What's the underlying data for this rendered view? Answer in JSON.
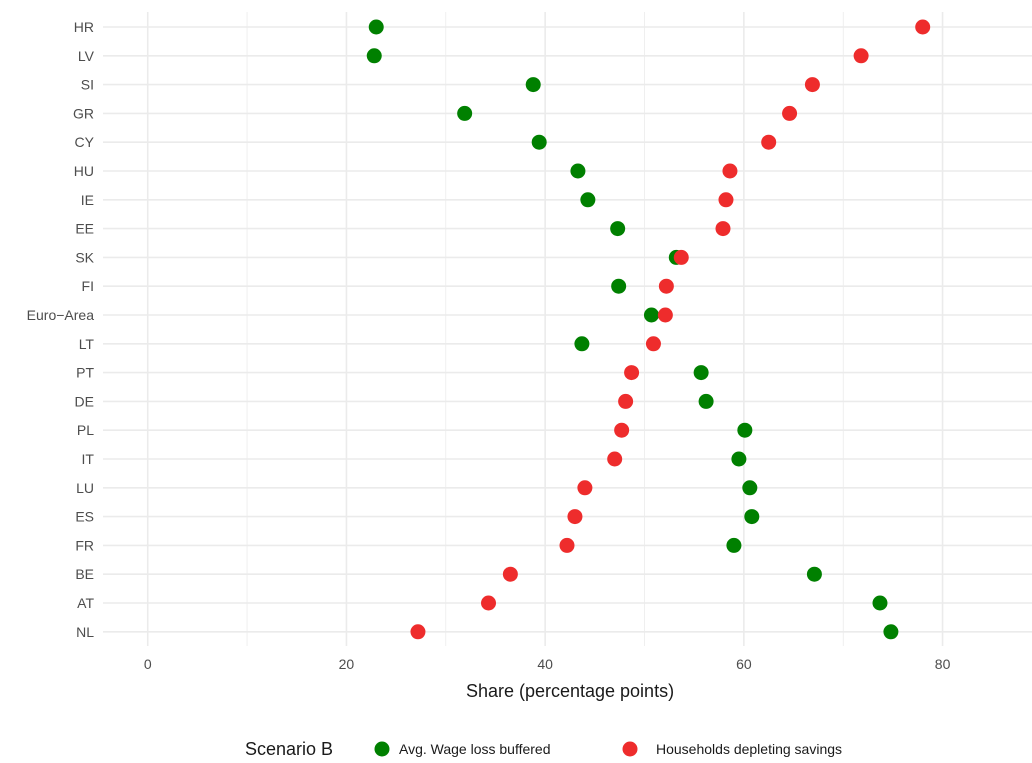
{
  "chart_data": {
    "type": "scatter",
    "orientation": "horizontal-dot-plot",
    "xlabel": "Share (percentage points)",
    "ylabel": "",
    "xlim": [
      -4.5,
      89
    ],
    "x_ticks": [
      0,
      20,
      40,
      60,
      80
    ],
    "grid": true,
    "legend_position": "bottom",
    "legend_title": "Scenario B",
    "categories": [
      "HR",
      "LV",
      "SI",
      "GR",
      "CY",
      "HU",
      "IE",
      "EE",
      "SK",
      "FI",
      "Euro−Area",
      "LT",
      "PT",
      "DE",
      "PL",
      "IT",
      "LU",
      "ES",
      "FR",
      "BE",
      "AT",
      "NL"
    ],
    "series": [
      {
        "name": "Avg. Wage loss buffered",
        "color": "#008000",
        "values": [
          23.0,
          22.8,
          38.8,
          31.9,
          39.4,
          43.3,
          44.3,
          47.3,
          53.2,
          47.4,
          50.7,
          43.7,
          55.7,
          56.2,
          60.1,
          59.5,
          60.6,
          60.8,
          59.0,
          67.1,
          73.7,
          74.8
        ]
      },
      {
        "name": "Households depleting savings",
        "color": "#ee2c2c",
        "values": [
          78.0,
          71.8,
          66.9,
          64.6,
          62.5,
          58.6,
          58.2,
          57.9,
          53.7,
          52.2,
          52.1,
          50.9,
          48.7,
          48.1,
          47.7,
          47.0,
          44.0,
          43.0,
          42.2,
          36.5,
          34.3,
          27.2
        ]
      }
    ]
  }
}
